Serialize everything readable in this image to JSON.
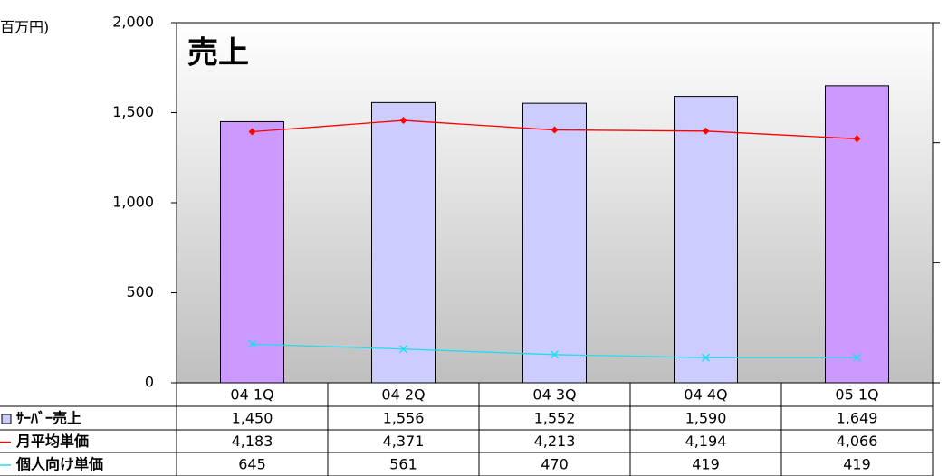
{
  "chart_data": {
    "type": "bar",
    "title": "売上",
    "y_label": "百万円)",
    "categories": [
      "04 1Q",
      "04 2Q",
      "04 3Q",
      "04 4Q",
      "05 1Q"
    ],
    "ylim": [
      0,
      2000
    ],
    "yticks": [
      0,
      500,
      {
        "value": 1000,
        "label": "1,000"
      },
      {
        "value": 1500,
        "label": "1,500"
      },
      {
        "value": 2000,
        "label": "2,000"
      }
    ],
    "y2lim": [
      0,
      6000
    ],
    "y2ticks": [
      0,
      2000,
      4000,
      6000
    ],
    "series": [
      {
        "name": "ｻｰﾊﾞｰ売上",
        "type": "bar",
        "colors": [
          "#cc99ff",
          "#ccccff",
          "#ccccff",
          "#ccccff",
          "#cc99ff"
        ],
        "values": [
          1450,
          1556,
          1552,
          1590,
          1649
        ],
        "value_labels": [
          "1,450",
          "1,556",
          "1,552",
          "1,590",
          "1,649"
        ]
      },
      {
        "name": "月平均単価",
        "type": "line",
        "axis": "y2",
        "color": "#ff0000",
        "marker": "diamond",
        "values": [
          4183,
          4371,
          4213,
          4194,
          4066
        ],
        "value_labels": [
          "4,183",
          "4,371",
          "4,213",
          "4,194",
          "4,066"
        ]
      },
      {
        "name": "個人向け単価",
        "type": "line",
        "axis": "y2",
        "color": "#22ddee",
        "marker": "x",
        "values": [
          645,
          561,
          470,
          419,
          419
        ]
      }
    ]
  }
}
